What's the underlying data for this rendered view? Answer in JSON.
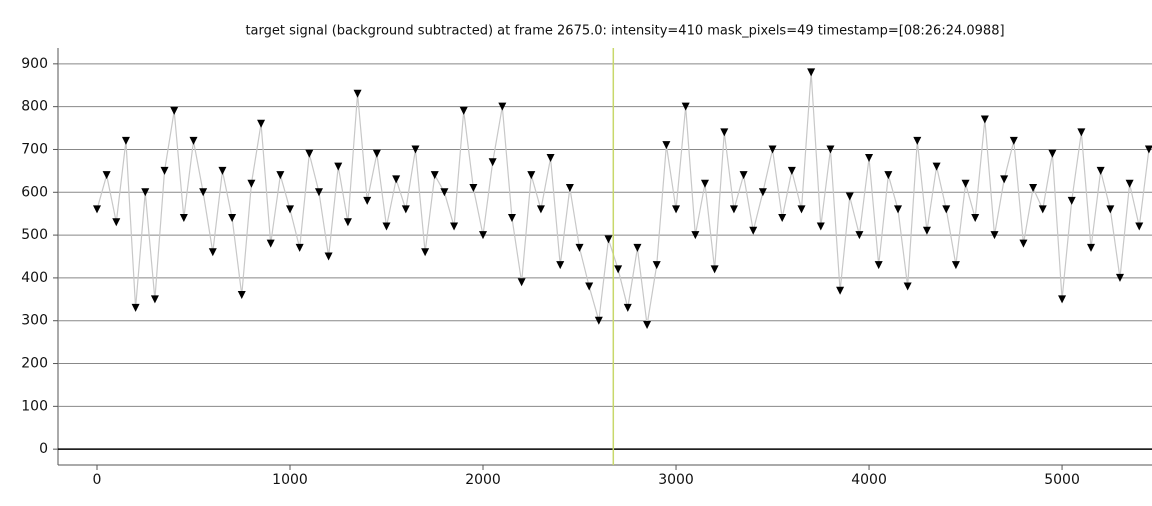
{
  "chart_data": {
    "type": "scatter",
    "title": "target signal (background subtracted) at frame 2675.0: intensity=410 mask_pixels=49 timestamp=[08:26:24.0988]",
    "x": [
      0,
      50,
      100,
      150,
      200,
      250,
      300,
      350,
      400,
      450,
      500,
      550,
      600,
      650,
      700,
      750,
      800,
      850,
      900,
      950,
      1000,
      1050,
      1100,
      1150,
      1200,
      1250,
      1300,
      1350,
      1400,
      1450,
      1500,
      1550,
      1600,
      1650,
      1700,
      1750,
      1800,
      1850,
      1900,
      1950,
      2000,
      2050,
      2100,
      2150,
      2200,
      2250,
      2300,
      2350,
      2400,
      2450,
      2500,
      2550,
      2600,
      2650,
      2700,
      2750,
      2800,
      2850,
      2900,
      2950,
      3000,
      3050,
      3100,
      3150,
      3200,
      3250,
      3300,
      3350,
      3400,
      3450,
      3500,
      3550,
      3600,
      3650,
      3700,
      3750,
      3800,
      3850,
      3900,
      3950,
      4000,
      4050,
      4100,
      4150,
      4200,
      4250,
      4300,
      4350,
      4400,
      4450,
      4500,
      4550,
      4600,
      4650,
      4700,
      4750,
      4800,
      4850,
      4900,
      4950,
      5000,
      5050,
      5100,
      5150,
      5200,
      5250,
      5300,
      5350,
      5400,
      5450
    ],
    "values": [
      560,
      640,
      530,
      720,
      330,
      600,
      350,
      650,
      790,
      540,
      720,
      600,
      460,
      650,
      540,
      360,
      620,
      760,
      480,
      640,
      560,
      470,
      690,
      600,
      450,
      660,
      530,
      830,
      580,
      690,
      520,
      630,
      560,
      700,
      460,
      640,
      600,
      520,
      790,
      610,
      500,
      670,
      800,
      540,
      390,
      640,
      560,
      680,
      430,
      610,
      470,
      380,
      300,
      490,
      420,
      330,
      470,
      290,
      430,
      710,
      560,
      800,
      500,
      620,
      420,
      740,
      560,
      640,
      510,
      600,
      700,
      540,
      650,
      560,
      880,
      520,
      700,
      370,
      590,
      500,
      680,
      430,
      640,
      560,
      380,
      720,
      510,
      660,
      560,
      430,
      620,
      540,
      770,
      500,
      630,
      720,
      480,
      610,
      560,
      690,
      350,
      580,
      740,
      470,
      650,
      560,
      400,
      620,
      520,
      700
    ],
    "color": "#000000",
    "line_color": "#c8c8c8",
    "cursor_color": "#c8d86a",
    "cursor_x": 2675,
    "xlim": [
      -202,
      5466
    ],
    "ylim": [
      -37,
      937
    ],
    "xticks": [
      0,
      1000,
      2000,
      3000,
      4000,
      5000
    ],
    "yticks": [
      0,
      100,
      200,
      300,
      400,
      500,
      600,
      700,
      800,
      900
    ],
    "grid": true
  }
}
